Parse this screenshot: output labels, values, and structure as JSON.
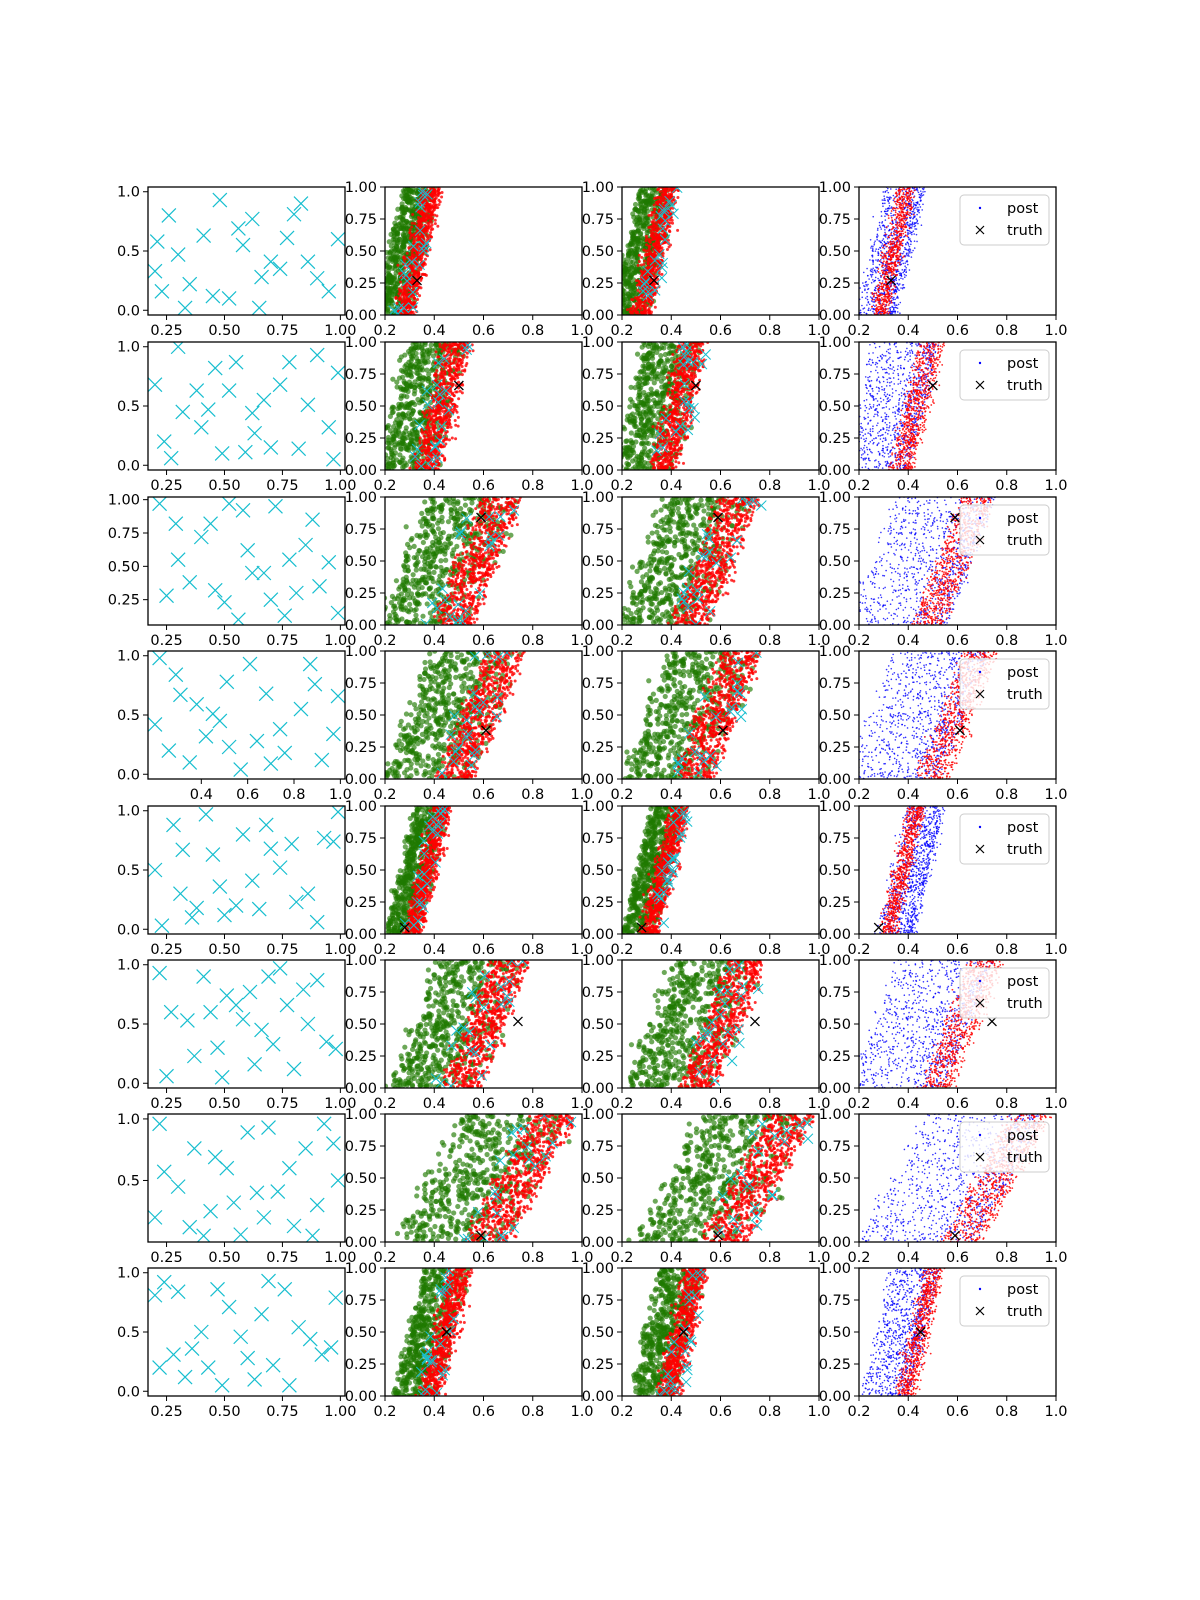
{
  "colors": {
    "design": "#17becf",
    "post_a": "#ff0000",
    "post_b": "#1f7a00",
    "post": "#0000ff",
    "truth": "#000000"
  },
  "legend": {
    "post_label": "post",
    "truth_label": "truth"
  },
  "chart_data": {
    "type": "scatter",
    "layout": "8 rows x 4 columns grid of scatter panels",
    "x_axis_2_4": {
      "xlim": [
        0.2,
        1.0
      ],
      "ticks": [
        "0.2",
        "0.4",
        "0.6",
        "0.8",
        "1.0"
      ]
    },
    "y_axis_2_4": {
      "ylim": [
        0.0,
        1.0
      ],
      "ticks": [
        "0.00",
        "0.25",
        "0.50",
        "0.75",
        "1.00"
      ]
    },
    "panels": [
      {
        "row": 1,
        "design_xticks": [
          "0.25",
          "0.50",
          "0.75",
          "1.00"
        ],
        "design_yticks": [
          "0.0",
          "0.5",
          "1.0"
        ],
        "design_ylim": [
          -0.04,
          1.04
        ],
        "truth": [
          0.33,
          0.27
        ],
        "posterior": {
          "x_bottom": 0.31,
          "slope": 0.11,
          "width": 0.13
        },
        "col4_blue_shift": 0.04,
        "legend": true,
        "design_points": [
          [
            0.83,
            0.9
          ],
          [
            0.21,
            0.58
          ],
          [
            0.52,
            0.1
          ],
          [
            0.23,
            0.16
          ],
          [
            0.8,
            0.81
          ],
          [
            0.62,
            0.77
          ],
          [
            0.58,
            0.55
          ],
          [
            0.3,
            0.47
          ],
          [
            0.7,
            0.41
          ],
          [
            0.9,
            0.27
          ],
          [
            0.48,
            0.93
          ],
          [
            0.65,
            0.02
          ],
          [
            0.26,
            0.8
          ],
          [
            0.74,
            0.35
          ],
          [
            0.35,
            0.22
          ],
          [
            0.99,
            0.6
          ],
          [
            0.41,
            0.63
          ],
          [
            0.56,
            0.69
          ],
          [
            0.86,
            0.41
          ],
          [
            0.33,
            0.02
          ],
          [
            0.66,
            0.28
          ],
          [
            0.45,
            0.12
          ],
          [
            0.95,
            0.16
          ],
          [
            0.2,
            0.33
          ],
          [
            0.77,
            0.61
          ]
        ]
      },
      {
        "row": 2,
        "design_xticks": [
          "0.25",
          "0.50",
          "0.75",
          "1.00"
        ],
        "design_yticks": [
          "0.0",
          "0.5",
          "1.0"
        ],
        "design_ylim": [
          -0.04,
          1.04
        ],
        "truth": [
          0.5,
          0.66
        ],
        "posterior": {
          "x_bottom": 0.42,
          "slope": 0.12,
          "width": 0.22
        },
        "col4_blue_shift": -0.02,
        "legend": true,
        "design_points": [
          [
            0.3,
            1.0
          ],
          [
            0.2,
            0.68
          ],
          [
            0.24,
            0.2
          ],
          [
            0.46,
            0.82
          ],
          [
            0.49,
            0.1
          ],
          [
            0.43,
            0.47
          ],
          [
            0.62,
            0.44
          ],
          [
            0.7,
            0.15
          ],
          [
            0.78,
            0.87
          ],
          [
            0.95,
            0.32
          ],
          [
            0.86,
            0.51
          ],
          [
            0.52,
            0.63
          ],
          [
            0.4,
            0.32
          ],
          [
            0.59,
            0.11
          ],
          [
            0.74,
            0.68
          ],
          [
            0.9,
            0.93
          ],
          [
            0.32,
            0.45
          ],
          [
            0.67,
            0.55
          ],
          [
            0.99,
            0.78
          ],
          [
            0.27,
            0.06
          ],
          [
            0.82,
            0.14
          ],
          [
            0.55,
            0.87
          ],
          [
            0.38,
            0.63
          ],
          [
            0.97,
            0.05
          ],
          [
            0.63,
            0.27
          ]
        ]
      },
      {
        "row": 3,
        "design_xticks": [
          "0.25",
          "0.50",
          "0.75",
          "1.00"
        ],
        "design_yticks": [
          "0.25",
          "0.50",
          "0.75",
          "1.00"
        ],
        "design_ylim": [
          0.06,
          1.02
        ],
        "truth": [
          0.59,
          0.84
        ],
        "posterior": {
          "x_bottom": 0.55,
          "slope": 0.2,
          "width": 0.33
        },
        "col4_blue_shift": 0.0,
        "legend": true,
        "design_points": [
          [
            0.22,
            0.97
          ],
          [
            0.3,
            0.55
          ],
          [
            0.25,
            0.28
          ],
          [
            0.46,
            0.32
          ],
          [
            0.4,
            0.72
          ],
          [
            0.52,
            0.97
          ],
          [
            0.6,
            0.62
          ],
          [
            0.67,
            0.45
          ],
          [
            0.76,
            0.13
          ],
          [
            0.81,
            0.3
          ],
          [
            0.88,
            0.85
          ],
          [
            0.95,
            0.53
          ],
          [
            0.56,
            0.1
          ],
          [
            0.35,
            0.38
          ],
          [
            0.72,
            0.95
          ],
          [
            0.62,
            0.45
          ],
          [
            0.85,
            0.66
          ],
          [
            0.99,
            0.15
          ],
          [
            0.44,
            0.82
          ],
          [
            0.7,
            0.25
          ],
          [
            0.29,
            0.82
          ],
          [
            0.5,
            0.23
          ],
          [
            0.91,
            0.35
          ],
          [
            0.58,
            0.92
          ],
          [
            0.78,
            0.55
          ]
        ]
      },
      {
        "row": 4,
        "design_xticks": [
          "0.4",
          "0.6",
          "0.8",
          "1.0"
        ],
        "design_yticks": [
          "0.0",
          "0.5",
          "1.0"
        ],
        "design_ylim": [
          -0.04,
          1.04
        ],
        "truth": [
          0.61,
          0.38
        ],
        "posterior": {
          "x_bottom": 0.56,
          "slope": 0.2,
          "width": 0.32
        },
        "col4_blue_shift": -0.04,
        "legend": true,
        "design_points": [
          [
            0.22,
            0.98
          ],
          [
            0.29,
            0.84
          ],
          [
            0.42,
            0.32
          ],
          [
            0.51,
            0.78
          ],
          [
            0.45,
            0.51
          ],
          [
            0.61,
            0.93
          ],
          [
            0.68,
            0.68
          ],
          [
            0.83,
            0.55
          ],
          [
            0.89,
            0.76
          ],
          [
            0.97,
            0.34
          ],
          [
            0.26,
            0.2
          ],
          [
            0.57,
            0.04
          ],
          [
            0.76,
            0.18
          ],
          [
            0.35,
            0.1
          ],
          [
            0.64,
            0.28
          ],
          [
            0.92,
            0.12
          ],
          [
            0.38,
            0.59
          ],
          [
            0.74,
            0.38
          ],
          [
            0.52,
            0.23
          ],
          [
            0.87,
            0.93
          ],
          [
            0.2,
            0.42
          ],
          [
            0.31,
            0.67
          ],
          [
            0.7,
            0.09
          ],
          [
            0.99,
            0.66
          ],
          [
            0.48,
            0.45
          ]
        ]
      },
      {
        "row": 5,
        "design_xticks": [
          "0.25",
          "0.50",
          "0.75",
          "1.00"
        ],
        "design_yticks": [
          "0.0",
          "0.5",
          "1.0"
        ],
        "design_ylim": [
          -0.04,
          1.04
        ],
        "truth": [
          0.28,
          0.05
        ],
        "posterior": {
          "x_bottom": 0.34,
          "slope": 0.12,
          "width": 0.12
        },
        "col4_blue_shift": 0.08,
        "legend": true,
        "design_points": [
          [
            0.2,
            0.5
          ],
          [
            0.23,
            0.03
          ],
          [
            0.32,
            0.67
          ],
          [
            0.38,
            0.18
          ],
          [
            0.45,
            0.63
          ],
          [
            0.42,
            0.97
          ],
          [
            0.58,
            0.8
          ],
          [
            0.62,
            0.41
          ],
          [
            0.7,
            0.68
          ],
          [
            0.79,
            0.72
          ],
          [
            0.93,
            0.77
          ],
          [
            0.99,
            0.99
          ],
          [
            0.28,
            0.88
          ],
          [
            0.5,
            0.12
          ],
          [
            0.65,
            0.17
          ],
          [
            0.86,
            0.3
          ],
          [
            0.48,
            0.36
          ],
          [
            0.74,
            0.52
          ],
          [
            0.36,
            0.1
          ],
          [
            0.9,
            0.06
          ],
          [
            0.55,
            0.2
          ],
          [
            0.31,
            0.3
          ],
          [
            0.68,
            0.88
          ],
          [
            0.97,
            0.74
          ],
          [
            0.81,
            0.23
          ]
        ]
      },
      {
        "row": 6,
        "design_xticks": [
          "0.25",
          "0.50",
          "0.75",
          "1.00"
        ],
        "design_yticks": [
          "0.0",
          "0.5",
          "1.0"
        ],
        "design_ylim": [
          -0.04,
          1.04
        ],
        "truth": [
          0.74,
          0.52
        ],
        "posterior": {
          "x_bottom": 0.58,
          "slope": 0.2,
          "width": 0.32
        },
        "col4_blue_shift": -0.04,
        "legend": true,
        "design_points": [
          [
            0.22,
            0.93
          ],
          [
            0.27,
            0.6
          ],
          [
            0.34,
            0.53
          ],
          [
            0.37,
            0.23
          ],
          [
            0.44,
            0.6
          ],
          [
            0.47,
            0.3
          ],
          [
            0.51,
            0.74
          ],
          [
            0.55,
            0.66
          ],
          [
            0.61,
            0.77
          ],
          [
            0.63,
            0.16
          ],
          [
            0.69,
            0.9
          ],
          [
            0.71,
            0.33
          ],
          [
            0.77,
            0.66
          ],
          [
            0.8,
            0.12
          ],
          [
            0.86,
            0.5
          ],
          [
            0.9,
            0.87
          ],
          [
            0.94,
            0.35
          ],
          [
            0.98,
            0.29
          ],
          [
            0.25,
            0.06
          ],
          [
            0.58,
            0.54
          ],
          [
            0.41,
            0.9
          ],
          [
            0.74,
            0.97
          ],
          [
            0.49,
            0.05
          ],
          [
            0.84,
            0.79
          ],
          [
            0.66,
            0.45
          ]
        ]
      },
      {
        "row": 7,
        "design_xticks": [
          "0.25",
          "0.50",
          "0.75",
          "1.00"
        ],
        "design_yticks": [
          "0.5",
          "1.0"
        ],
        "design_ylim": [
          0.0,
          1.04
        ],
        "truth": [
          0.59,
          0.05
        ],
        "posterior": {
          "x_bottom": 0.7,
          "slope": 0.28,
          "width": 0.4
        },
        "col4_blue_shift": -0.03,
        "legend": true,
        "design_points": [
          [
            0.22,
            0.96
          ],
          [
            0.2,
            0.2
          ],
          [
            0.3,
            0.45
          ],
          [
            0.24,
            0.57
          ],
          [
            0.37,
            0.76
          ],
          [
            0.44,
            0.25
          ],
          [
            0.46,
            0.69
          ],
          [
            0.51,
            0.6
          ],
          [
            0.57,
            0.06
          ],
          [
            0.6,
            0.89
          ],
          [
            0.64,
            0.4
          ],
          [
            0.67,
            0.2
          ],
          [
            0.73,
            0.41
          ],
          [
            0.78,
            0.6
          ],
          [
            0.85,
            0.76
          ],
          [
            0.9,
            0.3
          ],
          [
            0.97,
            0.8
          ],
          [
            0.99,
            0.5
          ],
          [
            0.35,
            0.12
          ],
          [
            0.54,
            0.32
          ],
          [
            0.8,
            0.13
          ],
          [
            0.69,
            0.93
          ],
          [
            0.88,
            0.05
          ],
          [
            0.41,
            0.05
          ],
          [
            0.93,
            0.96
          ]
        ]
      },
      {
        "row": 8,
        "design_xticks": [
          "0.25",
          "0.50",
          "0.75",
          "1.00"
        ],
        "design_yticks": [
          "0.0",
          "0.5",
          "1.0"
        ],
        "design_ylim": [
          -0.04,
          1.04
        ],
        "truth": [
          0.45,
          0.5
        ],
        "posterior": {
          "x_bottom": 0.42,
          "slope": 0.12,
          "width": 0.16
        },
        "col4_blue_shift": -0.02,
        "legend": true,
        "design_points": [
          [
            0.2,
            0.81
          ],
          [
            0.24,
            0.92
          ],
          [
            0.3,
            0.84
          ],
          [
            0.22,
            0.2
          ],
          [
            0.28,
            0.31
          ],
          [
            0.36,
            0.36
          ],
          [
            0.43,
            0.2
          ],
          [
            0.47,
            0.86
          ],
          [
            0.52,
            0.71
          ],
          [
            0.57,
            0.46
          ],
          [
            0.63,
            0.1
          ],
          [
            0.66,
            0.65
          ],
          [
            0.71,
            0.22
          ],
          [
            0.76,
            0.86
          ],
          [
            0.82,
            0.54
          ],
          [
            0.87,
            0.44
          ],
          [
            0.92,
            0.31
          ],
          [
            0.96,
            0.37
          ],
          [
            0.98,
            0.79
          ],
          [
            0.4,
            0.5
          ],
          [
            0.49,
            0.05
          ],
          [
            0.6,
            0.28
          ],
          [
            0.78,
            0.05
          ],
          [
            0.33,
            0.12
          ],
          [
            0.69,
            0.93
          ]
        ]
      }
    ]
  }
}
